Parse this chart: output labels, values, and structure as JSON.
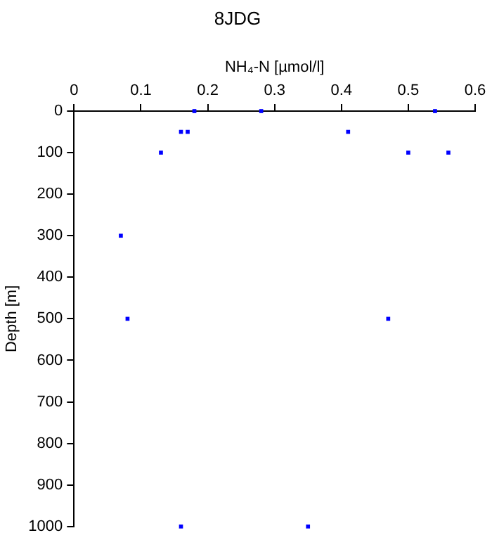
{
  "chart_data": {
    "type": "scatter",
    "title": "8JDG",
    "xlabel": "NH₄-N [µmol/l]",
    "ylabel": "Depth [m]",
    "series": [
      {
        "color": "#0000ff",
        "x": [
          0.18,
          0.28,
          0.54,
          0.16,
          0.17,
          0.41,
          0.13,
          0.5,
          0.56,
          0.07,
          0.08,
          0.47,
          0.16,
          0.35
        ],
        "values": [
          0,
          0,
          0,
          50,
          50,
          50,
          100,
          100,
          100,
          300,
          500,
          500,
          1000,
          1000
        ]
      }
    ],
    "xlim": [
      0,
      0.6
    ],
    "xticks": [
      0,
      0.1,
      0.2,
      0.3,
      0.4,
      0.5,
      0.6
    ],
    "ylim": [
      1000,
      0
    ],
    "yticks": [
      0,
      100,
      200,
      300,
      400,
      500,
      600,
      700,
      800,
      900,
      1000
    ],
    "grid": false,
    "legend": false,
    "marker": "square"
  }
}
